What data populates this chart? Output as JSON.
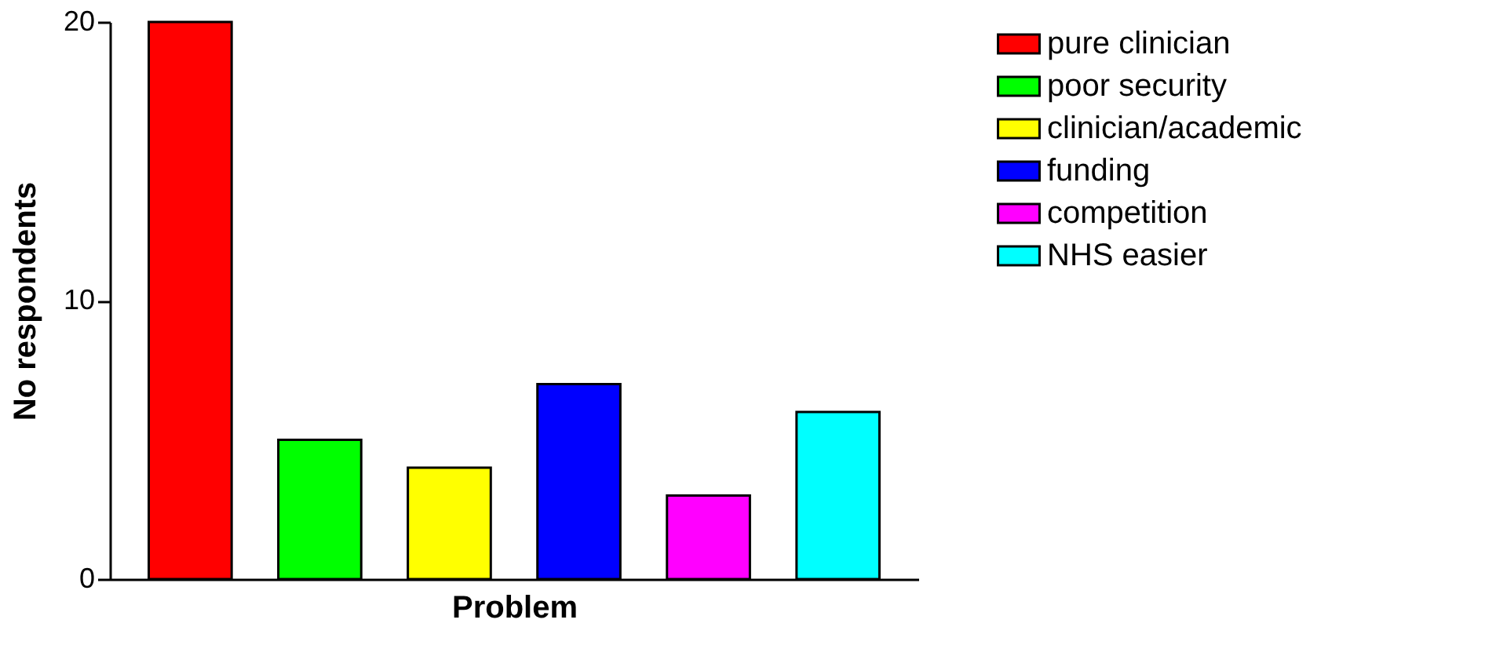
{
  "chart_data": {
    "type": "bar",
    "xlabel": "Problem",
    "ylabel": "No respondents",
    "categories": [
      null,
      null,
      null,
      null,
      null,
      null
    ],
    "series": [
      {
        "name": "pure clinician",
        "color": "#ff0000",
        "values": [
          20,
          null,
          null,
          null,
          null,
          null
        ]
      },
      {
        "name": "poor security",
        "color": "#00ff00",
        "values": [
          null,
          5,
          null,
          null,
          null,
          null
        ]
      },
      {
        "name": "clinician/academic",
        "color": "#ffff00",
        "values": [
          null,
          null,
          4,
          null,
          null,
          null
        ]
      },
      {
        "name": "funding",
        "color": "#0000ff",
        "values": [
          null,
          null,
          null,
          7,
          null,
          null
        ]
      },
      {
        "name": "competition",
        "color": "#ff00ff",
        "values": [
          null,
          null,
          null,
          null,
          3,
          null
        ]
      },
      {
        "name": "NHS easier",
        "color": "#00ffff",
        "values": [
          null,
          null,
          null,
          null,
          null,
          6
        ]
      }
    ],
    "ylim": [
      0,
      20
    ],
    "yticks": [
      0,
      10,
      20
    ],
    "legend": "right",
    "tick_labels": "y"
  }
}
